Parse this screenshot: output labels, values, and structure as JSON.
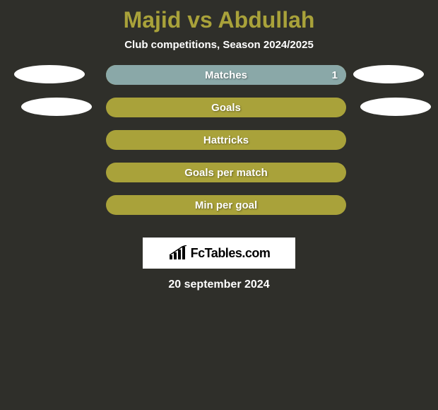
{
  "background_color": "#2f2f2a",
  "title_color": "#a9a23a",
  "text_color": "#ffffff",
  "title": "Majid vs Abdullah",
  "subtitle": "Club competitions, Season 2024/2025",
  "bar_background": "#a9a23a",
  "bar_fill_color": "#8aa8a8",
  "ellipse_color": "#ffffff",
  "logo_bg": "#ffffff",
  "logo_fg": "#000000",
  "logo_text": "FcTables.com",
  "date_text": "20 september 2024",
  "rows": [
    {
      "label": "Matches",
      "right_value": "1",
      "fill_pct": 100,
      "show_left_ellipse": true,
      "show_right_ellipse": true,
      "ellipse_style": 1
    },
    {
      "label": "Goals",
      "right_value": "",
      "fill_pct": 0,
      "show_left_ellipse": true,
      "show_right_ellipse": true,
      "ellipse_style": 2
    },
    {
      "label": "Hattricks",
      "right_value": "",
      "fill_pct": 0,
      "show_left_ellipse": false,
      "show_right_ellipse": false,
      "ellipse_style": 0
    },
    {
      "label": "Goals per match",
      "right_value": "",
      "fill_pct": 0,
      "show_left_ellipse": false,
      "show_right_ellipse": false,
      "ellipse_style": 0
    },
    {
      "label": "Min per goal",
      "right_value": "",
      "fill_pct": 0,
      "show_left_ellipse": false,
      "show_right_ellipse": false,
      "ellipse_style": 0
    }
  ]
}
